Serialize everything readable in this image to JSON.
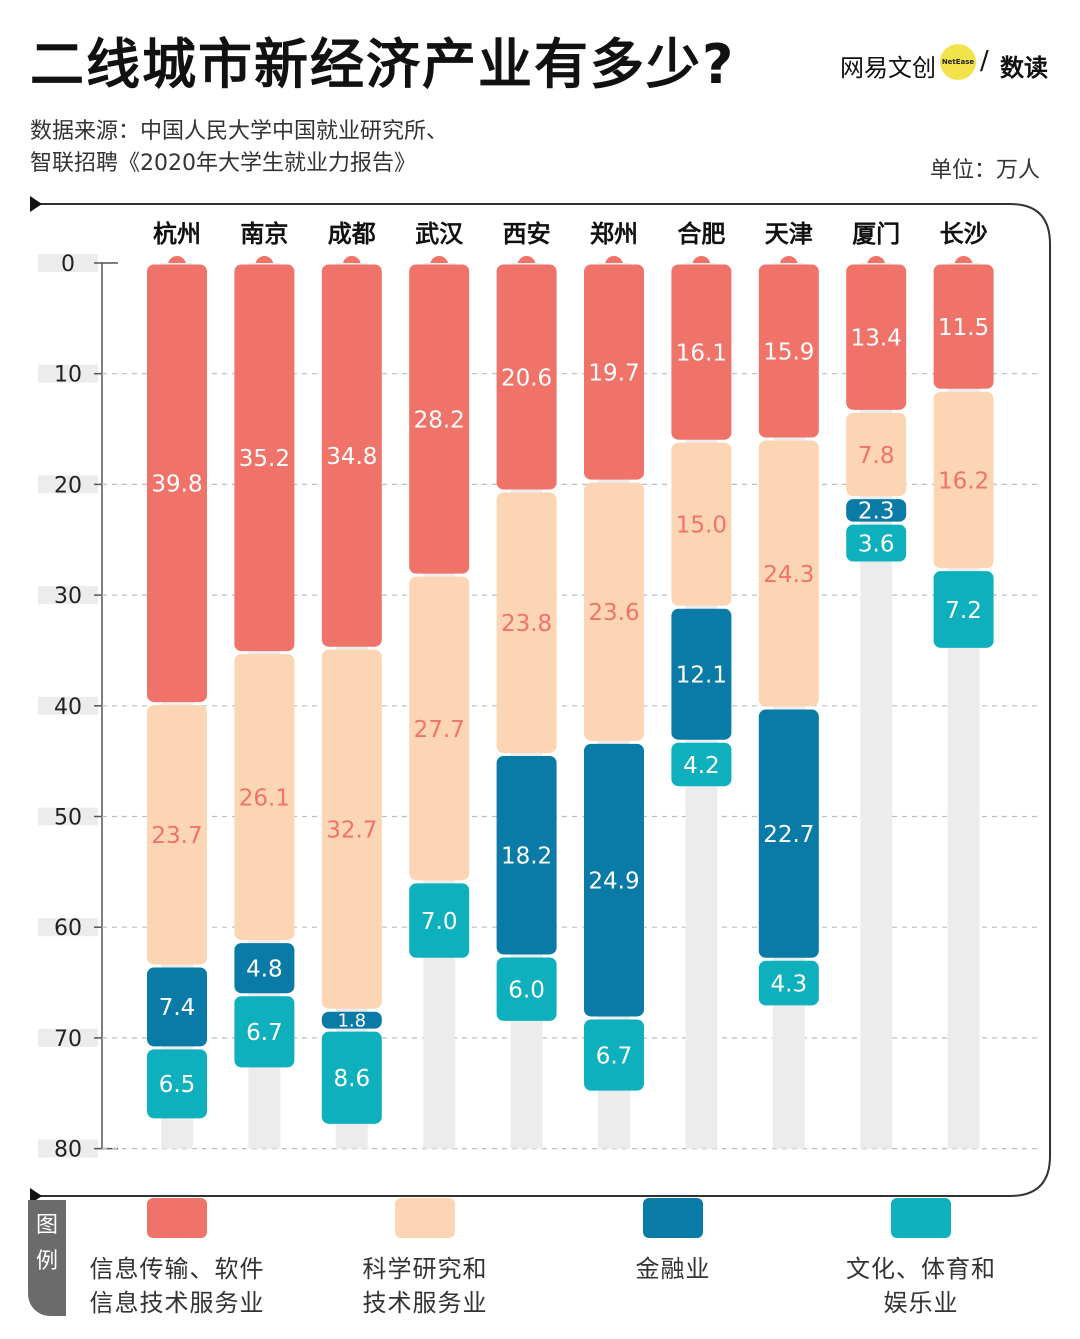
{
  "title": "二线城市新经济产业有多少?",
  "logo": {
    "brand1": "网易文创",
    "badge": "NetEase",
    "slash": "/",
    "brand2": "数读"
  },
  "source": {
    "line1": "数据来源：中国人民大学中国就业研究所、",
    "line2": "智联招聘《2020年大学生就业力报告》"
  },
  "unit": "单位：万人",
  "legend_tab": "图例",
  "colors": {
    "it": "#f0736a",
    "sci": "#fcd6b4",
    "fin": "#0a7aa6",
    "cul": "#0fb0be",
    "track": "#ececec",
    "frame": "#333333"
  },
  "legend": [
    {
      "key": "it",
      "label1": "信息传输、软件",
      "label2": "信息技术服务业"
    },
    {
      "key": "sci",
      "label1": "科学研究和",
      "label2": "技术服务业"
    },
    {
      "key": "fin",
      "label1": "金融业",
      "label2": ""
    },
    {
      "key": "cul",
      "label1": "文化、体育和",
      "label2": "娱乐业"
    }
  ],
  "chart_data": {
    "type": "bar",
    "stacked": true,
    "orientation": "vertical-downward",
    "categories": [
      "杭州",
      "南京",
      "成都",
      "武汉",
      "西安",
      "郑州",
      "合肥",
      "天津",
      "厦门",
      "长沙"
    ],
    "series": [
      {
        "key": "it",
        "name": "信息传输、软件信息技术服务业",
        "values": [
          39.8,
          35.2,
          34.8,
          28.2,
          20.6,
          19.7,
          16.1,
          15.9,
          13.4,
          11.5
        ]
      },
      {
        "key": "sci",
        "name": "科学研究和技术服务业",
        "values": [
          23.7,
          26.1,
          32.7,
          27.7,
          23.8,
          23.6,
          15.0,
          24.3,
          7.8,
          16.2
        ]
      },
      {
        "key": "fin",
        "name": "金融业",
        "values": [
          7.4,
          4.8,
          1.8,
          null,
          18.2,
          24.9,
          12.1,
          22.7,
          2.3,
          null
        ]
      },
      {
        "key": "cul",
        "name": "文化、体育和娱乐业",
        "values": [
          6.5,
          6.7,
          8.6,
          7.0,
          6.0,
          6.7,
          4.2,
          4.3,
          3.6,
          7.2
        ]
      }
    ],
    "yticks": [
      0,
      10,
      20,
      30,
      40,
      50,
      60,
      70,
      80
    ],
    "ylim": [
      0,
      80
    ],
    "ylabel": "单位：万人"
  }
}
